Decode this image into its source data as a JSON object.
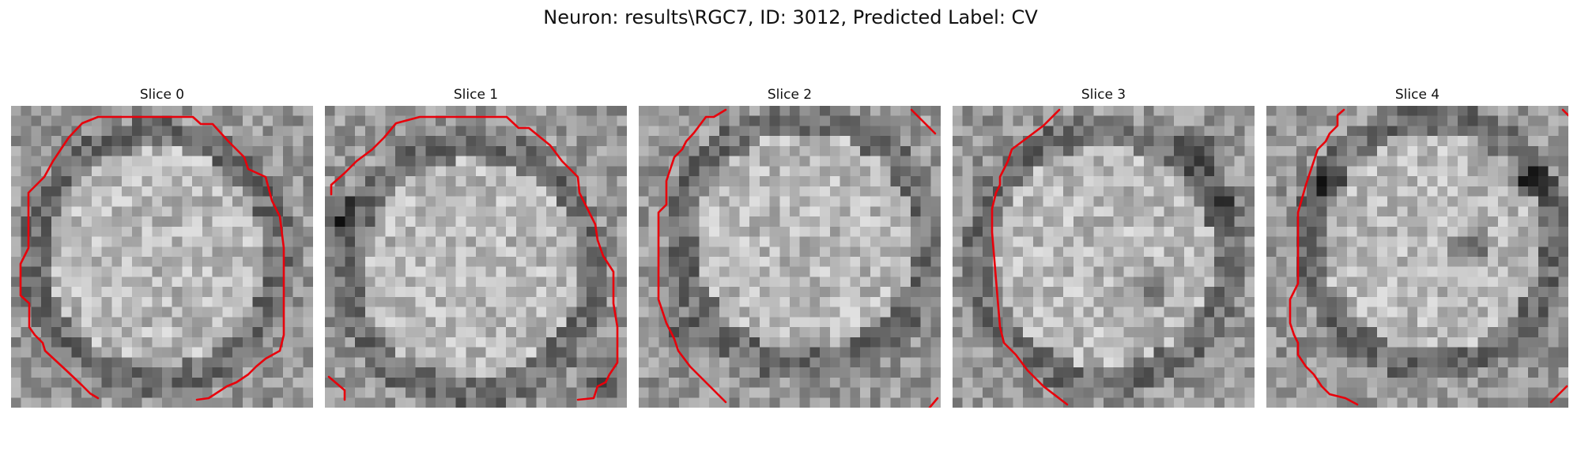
{
  "figure": {
    "title": "Neuron: results\\RGC7, ID: 3012, Predicted Label: CV"
  },
  "contour_color": "#e8000b",
  "slices": [
    {
      "title": "Slice 0",
      "cell_center": [
        0.48,
        0.5
      ],
      "dark_spots": []
    },
    {
      "title": "Slice 1",
      "cell_center": [
        0.48,
        0.54
      ],
      "dark_spots": [
        [
          0.05,
          0.36
        ],
        [
          0.93,
          0.92
        ]
      ]
    },
    {
      "title": "Slice 2",
      "cell_center": [
        0.55,
        0.45
      ],
      "dark_spots": [
        [
          0.14,
          0.76
        ]
      ]
    },
    {
      "title": "Slice 3",
      "cell_center": [
        0.5,
        0.5
      ],
      "dark_spots": [
        [
          0.82,
          0.16
        ],
        [
          0.65,
          0.6
        ],
        [
          0.9,
          0.35
        ]
      ]
    },
    {
      "title": "Slice 4",
      "cell_center": [
        0.55,
        0.45
      ],
      "dark_spots": [
        [
          0.68,
          0.48
        ],
        [
          0.88,
          0.25
        ],
        [
          0.2,
          0.25
        ]
      ]
    }
  ]
}
